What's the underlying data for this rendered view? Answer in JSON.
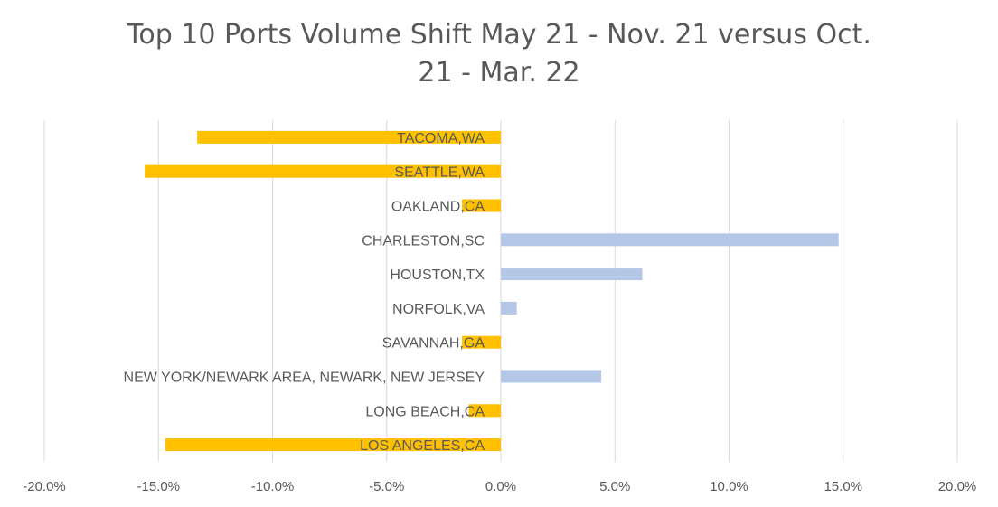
{
  "chart_data": {
    "type": "bar",
    "orientation": "horizontal",
    "title_lines": [
      "Top 10 Ports Volume Shift May 21 - Nov. 21 versus Oct.",
      "21 - Mar. 22"
    ],
    "categories": [
      "TACOMA,WA",
      "SEATTLE,WA",
      "OAKLAND,CA",
      "CHARLESTON,SC",
      "HOUSTON,TX",
      "NORFOLK,VA",
      "SAVANNAH,GA",
      "NEW YORK/NEWARK AREA, NEWARK, NEW JERSEY",
      "LONG BEACH,CA",
      "LOS ANGELES,CA"
    ],
    "values": [
      -13.3,
      -15.6,
      -1.7,
      14.8,
      6.2,
      0.7,
      -1.7,
      4.4,
      -1.4,
      -14.7
    ],
    "xlim": [
      -20,
      20
    ],
    "xticks": [
      -20,
      -15,
      -10,
      -5,
      0,
      5,
      10,
      15,
      20
    ],
    "xtick_labels": [
      "-20.0%",
      "-15.0%",
      "-10.0%",
      "-5.0%",
      "0.0%",
      "5.0%",
      "10.0%",
      "15.0%",
      "20.0%"
    ],
    "grid": "vertical",
    "legend": "none",
    "colors": {
      "negative": "#ffc000",
      "positive": "#b4c7e7",
      "grid": "#d9d9d9",
      "text": "#595959"
    }
  }
}
